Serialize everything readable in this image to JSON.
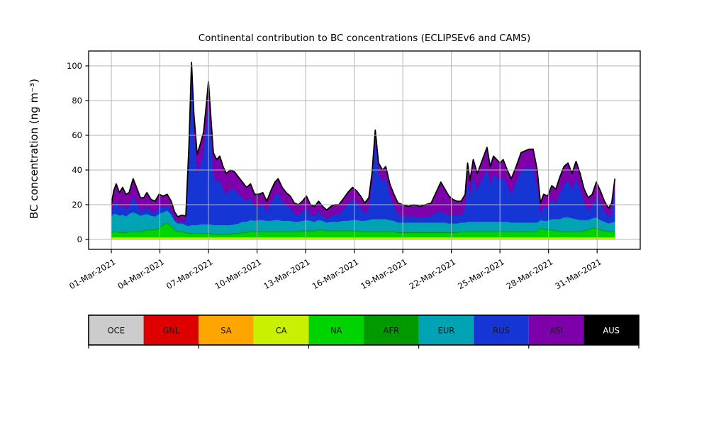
{
  "title": "Continental contribution to BC concentrations (ECLIPSEv6 and CAMS)",
  "y_axis": {
    "label": "BC concentration (ng m⁻³)",
    "ticks": [
      0,
      20,
      40,
      60,
      80,
      100
    ]
  },
  "x_axis": {
    "tick_days": [
      1,
      4,
      7,
      10,
      13,
      16,
      19,
      22,
      25,
      28,
      31
    ],
    "tick_labels": [
      "01-Mar-2021",
      "04-Mar-2021",
      "07-Mar-2021",
      "10-Mar-2021",
      "13-Mar-2021",
      "16-Mar-2021",
      "19-Mar-2021",
      "22-Mar-2021",
      "25-Mar-2021",
      "28-Mar-2021",
      "31-Mar-2021"
    ]
  },
  "grid_color": "#b3b3b3",
  "legend": {
    "entries": [
      {
        "label": "OCE",
        "color": "#cccccc",
        "text_color": "#1a1a1a"
      },
      {
        "label": "GNL",
        "color": "#de0000",
        "text_color": "#1a1a1a"
      },
      {
        "label": "SA",
        "color": "#ffa500",
        "text_color": "#1a1a1a"
      },
      {
        "label": "CA",
        "color": "#c8f000",
        "text_color": "#1a1a1a"
      },
      {
        "label": "NA",
        "color": "#00d400",
        "text_color": "#1a1a1a"
      },
      {
        "label": "AFR",
        "color": "#009a00",
        "text_color": "#1a1a1a"
      },
      {
        "label": "EUR",
        "color": "#00a3b3",
        "text_color": "#1a1a1a"
      },
      {
        "label": "RUS",
        "color": "#1535d4",
        "text_color": "#1a1a1a"
      },
      {
        "label": "ASI",
        "color": "#7d00ab",
        "text_color": "#1a1a1a"
      },
      {
        "label": "AUS",
        "color": "#000000",
        "text_color": "#ffffff"
      }
    ],
    "tick_every_n_segments": 2
  },
  "chart_data": {
    "type": "area",
    "stacked": true,
    "title": "Continental contribution to BC concentrations (ECLIPSEv6 and CAMS)",
    "xlabel": "",
    "ylabel": "BC concentration (ng m⁻³)",
    "x_unit": "day of March 2021 (fractional)",
    "y_unit": "ng m-3",
    "ylim": [
      -6,
      109
    ],
    "y_ticks": [
      0,
      20,
      40,
      60,
      80,
      100
    ],
    "grid": true,
    "grid_above_data": true,
    "outline_color": "#000000",
    "stack_order_bottom_to_top": [
      "OCE",
      "GNL",
      "SA",
      "CA",
      "NA",
      "AFR",
      "EUR",
      "RUS",
      "ASI",
      "AUS"
    ],
    "constant_series": {
      "OCE": 0.05,
      "GNL": 0.05,
      "SA": 0.25,
      "CA": 0.8,
      "AFR": 0.5,
      "AUS": 0.05
    },
    "RUS_is_remainder_of_total": true,
    "columns": [
      "day",
      "total",
      "NA",
      "EUR",
      "ASI"
    ],
    "points": [
      [
        1.0,
        20,
        2.5,
        9,
        5
      ],
      [
        1.15,
        28,
        3,
        10,
        8
      ],
      [
        1.3,
        32,
        3,
        10,
        10
      ],
      [
        1.5,
        27,
        2.5,
        9.5,
        9
      ],
      [
        1.7,
        30,
        2.5,
        10,
        10
      ],
      [
        1.9,
        26,
        2.5,
        9,
        9
      ],
      [
        2.1,
        27,
        3,
        10,
        8
      ],
      [
        2.35,
        35,
        3,
        11,
        10
      ],
      [
        2.6,
        29,
        3,
        10,
        9
      ],
      [
        2.8,
        24,
        3,
        9,
        7
      ],
      [
        3.0,
        24,
        3.5,
        9,
        7
      ],
      [
        3.2,
        27,
        4,
        9,
        8
      ],
      [
        3.45,
        23,
        4,
        8,
        7
      ],
      [
        3.7,
        22,
        4,
        7.5,
        6.5
      ],
      [
        3.95,
        26,
        5,
        8,
        7
      ],
      [
        4.2,
        25,
        7,
        7,
        6.5
      ],
      [
        4.45,
        26,
        8,
        7,
        6.5
      ],
      [
        4.7,
        22,
        6,
        6.5,
        5.5
      ],
      [
        4.9,
        16,
        4,
        5,
        4
      ],
      [
        5.1,
        13,
        3,
        4.5,
        3
      ],
      [
        5.35,
        14,
        3,
        4.5,
        3.5
      ],
      [
        5.6,
        13.5,
        2.5,
        4,
        3.5
      ],
      [
        5.8,
        55,
        2,
        4,
        8
      ],
      [
        5.95,
        102,
        2,
        4.5,
        12
      ],
      [
        6.1,
        72,
        2,
        4.5,
        11
      ],
      [
        6.3,
        49,
        2,
        4.5,
        11
      ],
      [
        6.5,
        55,
        2,
        5,
        12
      ],
      [
        6.7,
        62,
        2,
        5,
        12
      ],
      [
        6.85,
        76,
        2,
        5,
        12
      ],
      [
        7.0,
        91,
        2,
        5,
        12
      ],
      [
        7.15,
        70,
        2,
        5,
        13
      ],
      [
        7.3,
        50,
        1.5,
        5,
        13
      ],
      [
        7.5,
        46,
        1.5,
        5,
        13
      ],
      [
        7.7,
        48,
        1.5,
        5,
        14
      ],
      [
        7.9,
        42,
        1.5,
        5,
        13
      ],
      [
        8.1,
        38,
        1.5,
        5,
        12
      ],
      [
        8.35,
        40,
        1.5,
        5,
        11
      ],
      [
        8.6,
        39,
        2,
        5,
        10
      ],
      [
        8.85,
        36,
        2,
        5.5,
        10
      ],
      [
        9.1,
        33,
        2.5,
        6,
        9
      ],
      [
        9.35,
        30,
        2.5,
        6,
        8
      ],
      [
        9.6,
        32,
        3.5,
        6,
        8
      ],
      [
        9.85,
        26,
        3,
        6,
        7
      ],
      [
        10.1,
        26,
        3,
        6.5,
        7
      ],
      [
        10.35,
        27,
        3,
        6.5,
        7
      ],
      [
        10.6,
        22,
        3,
        6,
        6
      ],
      [
        10.85,
        28,
        3,
        6,
        7
      ],
      [
        11.1,
        33,
        3,
        6.5,
        8
      ],
      [
        11.3,
        35,
        3,
        6.5,
        8
      ],
      [
        11.55,
        30,
        3,
        6,
        8
      ],
      [
        11.8,
        27,
        3,
        6,
        7.5
      ],
      [
        12.05,
        25,
        3,
        6,
        7
      ],
      [
        12.3,
        21,
        3,
        5.5,
        6
      ],
      [
        12.55,
        20,
        3,
        5.5,
        6
      ],
      [
        12.8,
        22,
        3.5,
        5.5,
        6
      ],
      [
        13.05,
        25,
        3.5,
        6,
        6.5
      ],
      [
        13.3,
        20,
        3.5,
        5.5,
        6
      ],
      [
        13.55,
        19,
        3.5,
        5,
        5.5
      ],
      [
        13.8,
        22,
        4,
        5.5,
        6
      ],
      [
        14.05,
        19,
        4,
        5,
        5.5
      ],
      [
        14.3,
        17,
        3.5,
        4.5,
        5
      ],
      [
        14.55,
        19,
        3.5,
        5,
        5.5
      ],
      [
        14.8,
        20,
        3.5,
        5,
        5.5
      ],
      [
        15.05,
        20,
        3.5,
        5,
        5.5
      ],
      [
        15.3,
        23,
        3.5,
        5.5,
        6
      ],
      [
        15.6,
        27,
        3.5,
        5.5,
        6.5
      ],
      [
        15.9,
        30,
        3.5,
        6,
        7
      ],
      [
        16.15,
        28,
        3.5,
        6,
        7
      ],
      [
        16.4,
        25,
        3,
        6,
        6.5
      ],
      [
        16.65,
        21,
        3,
        6,
        6
      ],
      [
        16.9,
        24,
        3,
        6.5,
        6
      ],
      [
        17.1,
        38,
        3,
        7,
        6
      ],
      [
        17.3,
        63,
        3,
        7,
        6
      ],
      [
        17.5,
        44,
        3,
        7,
        6
      ],
      [
        17.75,
        40,
        3,
        7,
        7
      ],
      [
        17.95,
        42,
        3,
        7,
        7
      ],
      [
        18.2,
        32,
        3,
        6.5,
        7
      ],
      [
        18.45,
        26,
        3,
        6,
        7
      ],
      [
        18.7,
        21,
        2.5,
        5.5,
        6.5
      ],
      [
        19.0,
        20,
        2.5,
        5.5,
        6.5
      ],
      [
        19.35,
        19,
        2.5,
        5.5,
        6
      ],
      [
        19.7,
        20,
        2.5,
        5.5,
        6.5
      ],
      [
        20.05,
        19,
        2.5,
        5.5,
        6.5
      ],
      [
        20.4,
        20,
        2.5,
        5.5,
        7
      ],
      [
        20.75,
        21,
        2.5,
        5.5,
        7.5
      ],
      [
        21.1,
        28,
        2.5,
        5.5,
        12
      ],
      [
        21.35,
        33,
        2.5,
        5.5,
        17
      ],
      [
        21.6,
        29,
        2.5,
        5.5,
        14
      ],
      [
        21.85,
        25,
        2.5,
        5,
        11
      ],
      [
        22.1,
        23,
        2.5,
        5,
        9
      ],
      [
        22.35,
        22,
        2.5,
        5,
        8
      ],
      [
        22.6,
        22,
        3,
        5,
        8
      ],
      [
        22.85,
        26,
        3,
        5,
        8
      ],
      [
        23.0,
        44,
        3,
        5.5,
        9
      ],
      [
        23.15,
        34,
        3,
        5.5,
        9
      ],
      [
        23.35,
        46,
        3,
        5.5,
        10
      ],
      [
        23.6,
        38,
        3,
        5.5,
        10
      ],
      [
        23.8,
        43,
        3,
        5.5,
        10
      ],
      [
        24.0,
        48,
        3,
        5.5,
        11
      ],
      [
        24.2,
        53,
        3,
        5.5,
        12
      ],
      [
        24.4,
        42,
        3,
        5.5,
        11
      ],
      [
        24.6,
        48,
        3,
        5.5,
        11
      ],
      [
        24.8,
        46,
        3,
        5.5,
        10
      ],
      [
        25.0,
        44,
        3,
        5.5,
        10
      ],
      [
        25.2,
        46,
        3,
        5.5,
        10
      ],
      [
        25.45,
        40,
        3,
        5.5,
        9
      ],
      [
        25.7,
        35,
        3,
        5,
        9
      ],
      [
        26.0,
        42,
        3,
        5,
        9
      ],
      [
        26.3,
        50,
        3,
        5,
        10
      ],
      [
        26.55,
        51,
        3,
        5,
        10
      ],
      [
        26.8,
        52,
        3,
        5,
        11
      ],
      [
        27.05,
        52,
        3,
        5,
        11
      ],
      [
        27.3,
        40,
        3,
        5,
        10
      ],
      [
        27.5,
        21,
        5,
        4.5,
        6
      ],
      [
        27.7,
        26,
        4.5,
        4.5,
        7
      ],
      [
        27.95,
        25,
        4,
        5,
        7
      ],
      [
        28.2,
        31,
        4,
        6,
        8
      ],
      [
        28.45,
        29,
        3.5,
        6.5,
        8
      ],
      [
        28.7,
        36,
        3,
        7,
        9
      ],
      [
        28.95,
        42,
        3,
        8,
        10
      ],
      [
        29.2,
        44,
        3,
        8,
        10
      ],
      [
        29.45,
        38,
        3,
        7.5,
        9
      ],
      [
        29.7,
        45,
        3,
        7,
        10
      ],
      [
        29.95,
        38,
        3,
        6.5,
        9
      ],
      [
        30.2,
        29,
        3.5,
        6,
        8
      ],
      [
        30.45,
        24,
        4,
        5.5,
        7
      ],
      [
        30.7,
        26,
        5,
        5.5,
        7
      ],
      [
        30.95,
        33,
        5,
        6,
        8
      ],
      [
        31.2,
        28,
        4,
        5.5,
        7
      ],
      [
        31.45,
        22,
        3.5,
        5,
        6
      ],
      [
        31.7,
        18,
        3,
        4.5,
        5
      ],
      [
        31.9,
        21,
        3,
        5,
        5.5
      ],
      [
        32.1,
        35,
        3,
        5.5,
        7
      ]
    ]
  }
}
